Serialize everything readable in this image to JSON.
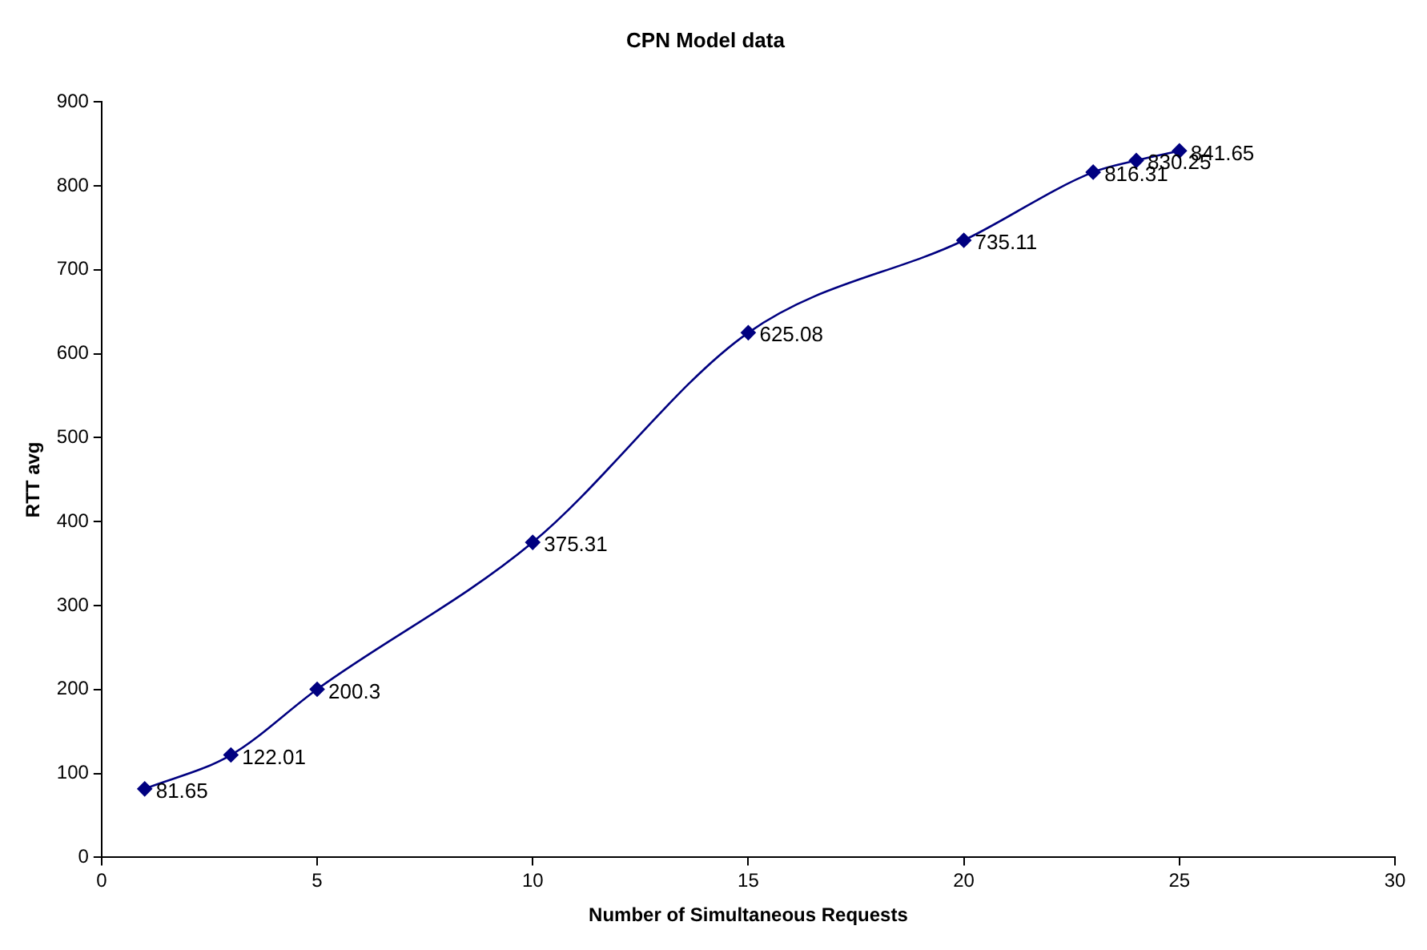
{
  "chart_data": {
    "type": "line",
    "title": "CPN Model data",
    "xlabel": "Number of Simultaneous Requests",
    "ylabel": "RTT avg",
    "x": [
      1,
      3,
      5,
      10,
      15,
      20,
      23,
      24,
      25
    ],
    "values": [
      81.65,
      122.01,
      200.3,
      375.31,
      625.08,
      735.11,
      816.31,
      830.25,
      841.65
    ],
    "color": "#000080",
    "marker": "diamond",
    "line_style": "solid",
    "data_labels": true,
    "xlim": [
      0,
      30
    ],
    "xticks": [
      0,
      5,
      10,
      15,
      20,
      25,
      30
    ],
    "ylim": [
      0,
      900
    ],
    "yticks": [
      0,
      100,
      200,
      300,
      400,
      500,
      600,
      700,
      800,
      900
    ]
  }
}
